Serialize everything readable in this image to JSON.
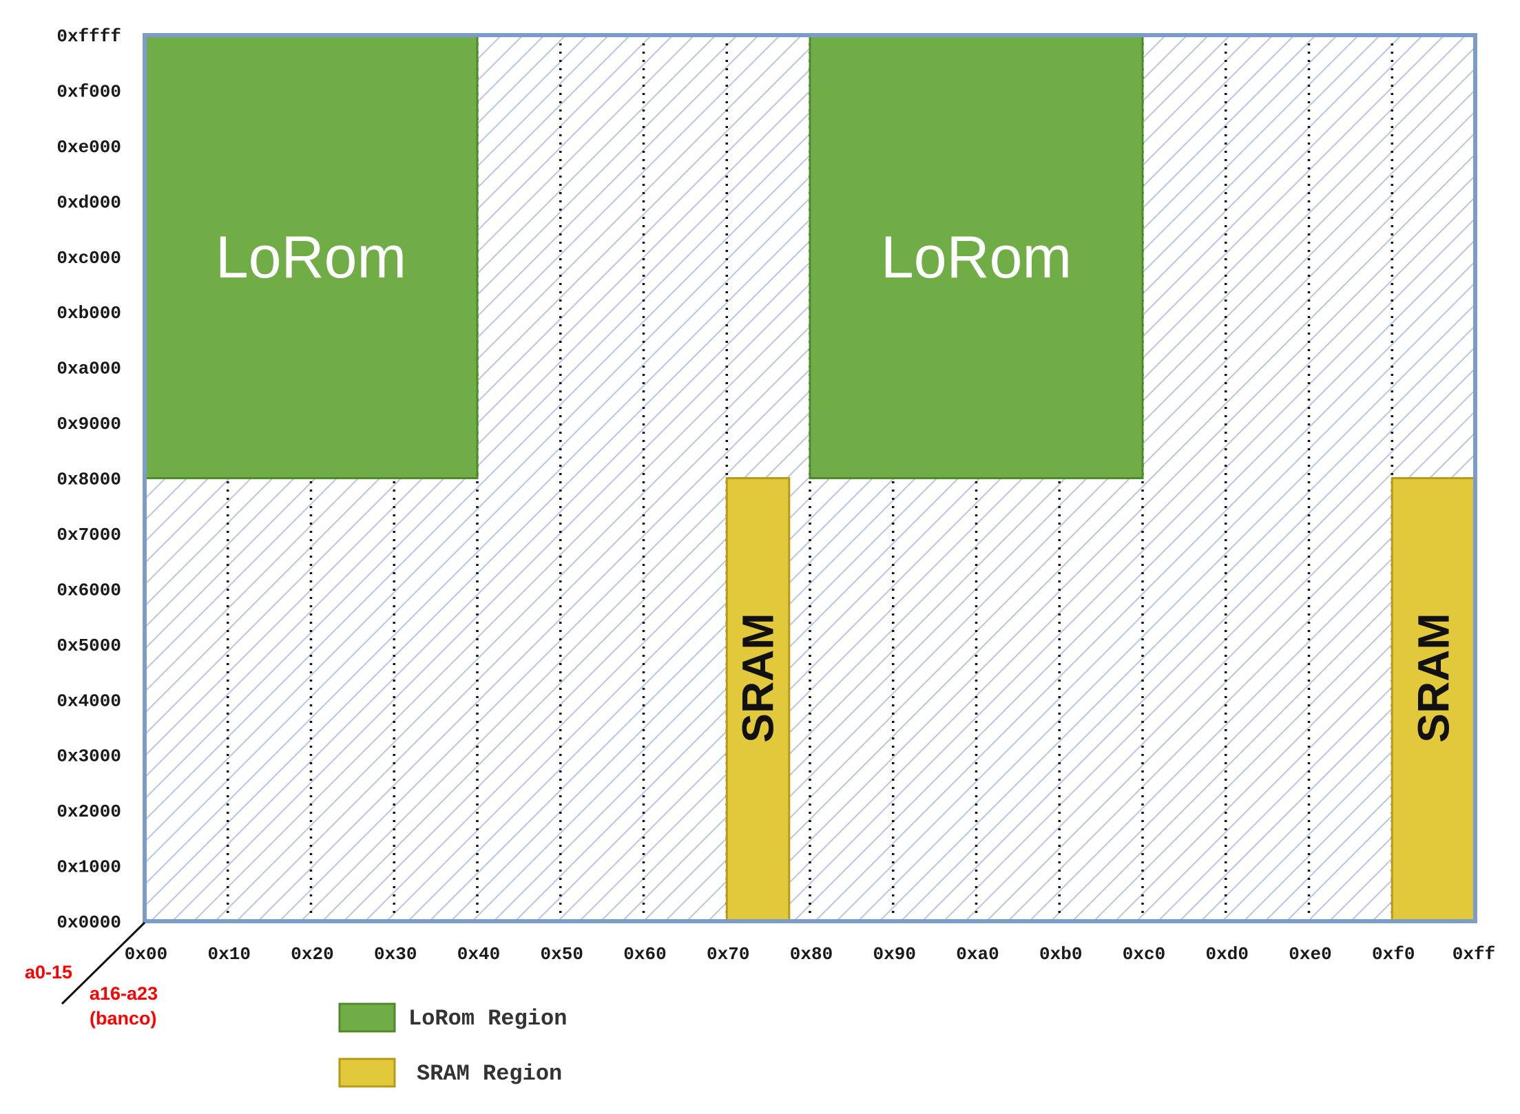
{
  "axes": {
    "address_label": "a0-15",
    "bank_label_line1": "a16-a23",
    "bank_label_line2": "(banco)",
    "y_ticks": [
      "0x0000",
      "0x1000",
      "0x2000",
      "0x3000",
      "0x4000",
      "0x5000",
      "0x6000",
      "0x7000",
      "0x8000",
      "0x9000",
      "0xa000",
      "0xb000",
      "0xc000",
      "0xd000",
      "0xe000",
      "0xf000",
      "0xffff"
    ],
    "x_ticks": [
      "0x00",
      "0x10",
      "0x20",
      "0x30",
      "0x40",
      "0x50",
      "0x60",
      "0x70",
      "0x80",
      "0x90",
      "0xa0",
      "0xb0",
      "0xc0",
      "0xd0",
      "0xe0",
      "0xf0",
      "0xff"
    ]
  },
  "regions": [
    {
      "label": "LoRom",
      "kind": "lorom",
      "bank_start": 0,
      "bank_end": 64,
      "addr_start": 32768,
      "addr_end": 65535
    },
    {
      "label": "LoRom",
      "kind": "lorom",
      "bank_start": 128,
      "bank_end": 192,
      "addr_start": 32768,
      "addr_end": 65535
    },
    {
      "label": "SRAM",
      "kind": "sram",
      "bank_start": 112,
      "bank_end": 124,
      "addr_start": 0,
      "addr_end": 32768
    },
    {
      "label": "SRAM",
      "kind": "sram",
      "bank_start": 240,
      "bank_end": 256,
      "addr_start": 0,
      "addr_end": 32768
    }
  ],
  "legend": [
    {
      "label": "LoRom Region",
      "color": "#70ad47"
    },
    {
      "label": "SRAM Region",
      "color": "#e2c93c"
    }
  ],
  "colors": {
    "frame": "#7b9cc9",
    "hatch": "#b8c7de",
    "lorom_fill": "#70ad47",
    "lorom_stroke": "#4e8a2c",
    "sram_fill": "#e2c93c",
    "sram_stroke": "#b79a16"
  }
}
